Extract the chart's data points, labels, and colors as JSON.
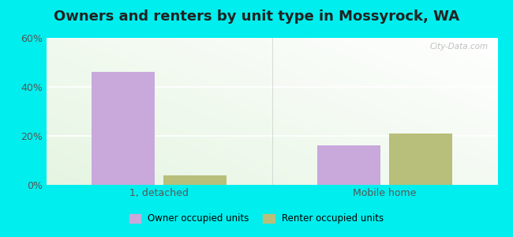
{
  "title": "Owners and renters by unit type in Mossyrock, WA",
  "categories": [
    "1, detached",
    "Mobile home"
  ],
  "owner_values": [
    46.0,
    16.0
  ],
  "renter_values": [
    4.0,
    21.0
  ],
  "owner_color": "#c9a8dc",
  "renter_color": "#b8bf7a",
  "ylim": [
    0,
    60
  ],
  "yticks": [
    0,
    20,
    40,
    60
  ],
  "ytick_labels": [
    "0%",
    "20%",
    "40%",
    "60%"
  ],
  "bar_width": 0.28,
  "legend_owner": "Owner occupied units",
  "legend_renter": "Renter occupied units",
  "bg_outer": "#00EEEE",
  "watermark": "City-Data.com",
  "title_fontsize": 13,
  "axis_fontsize": 9
}
